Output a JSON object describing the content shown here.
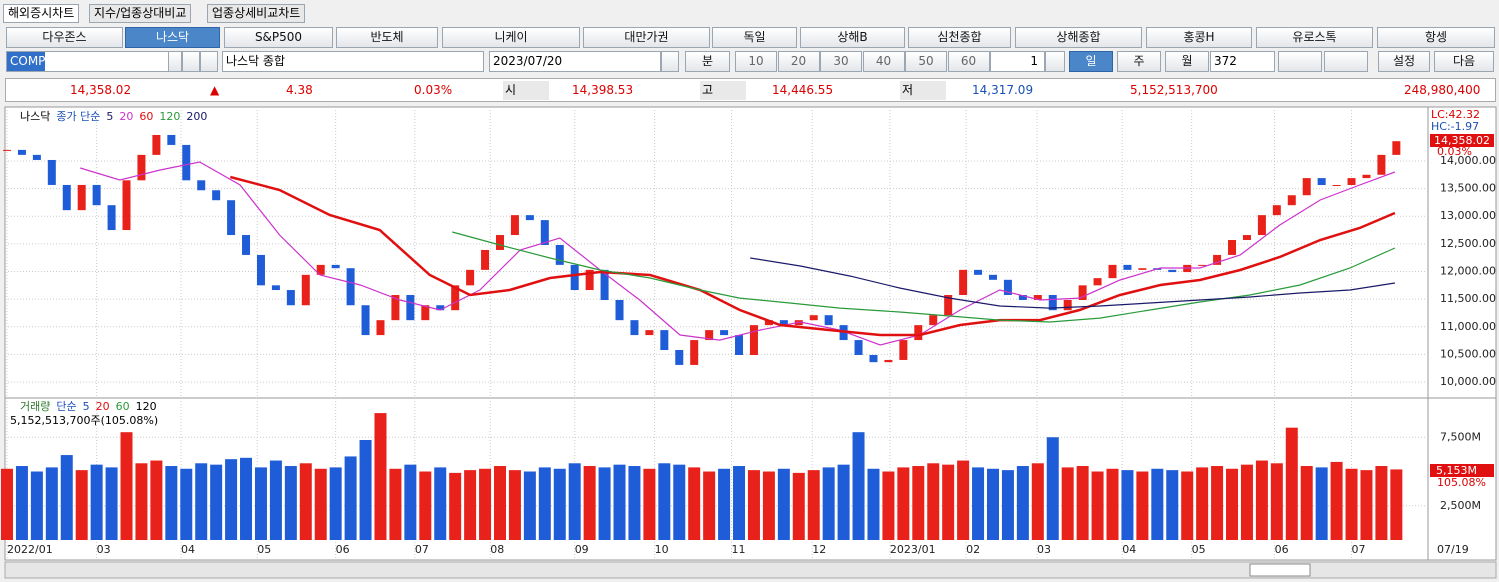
{
  "tabs": [
    "해외증시차트",
    "지수/업종상대비교",
    "업종상세비교차트"
  ],
  "markets": [
    "다우존스",
    "나스닥",
    "S&P500",
    "반도체",
    "니케이",
    "대만가권",
    "독일",
    "상해B",
    "심천종합",
    "상해종합",
    "홍콩H",
    "유로스톡",
    "항셍"
  ],
  "selected_market": 1,
  "symbol": {
    "code": "COMP",
    "name": "나스닥 종합",
    "date": "2023/07/20",
    "minute_label": "분",
    "minute_options": [
      "10",
      "20",
      "30",
      "40",
      "50",
      "60"
    ],
    "interval": "1",
    "periods": [
      "일",
      "주",
      "월"
    ],
    "count": "372",
    "settings": "설정",
    "next": "다음"
  },
  "quote": {
    "last": "14,358.02",
    "arrow": "▲",
    "change": "4.38",
    "change_pct": "0.03%",
    "open_label": "시",
    "open": "14,398.53",
    "high_label": "고",
    "high": "14,446.55",
    "low_label": "저",
    "low": "14,317.09",
    "volume": "5,152,513,700",
    "amount": "248,980,400"
  },
  "chart_data": [
    {
      "type": "candlestick",
      "title": "나스닥",
      "ma_label": "종가 단순",
      "ma5_label": "5",
      "up_color": "#e8221b",
      "down_color": "#1e5cd8",
      "lc_label": "LC:42.32",
      "hc_label": "HC:-1.97",
      "last_label": "14,358.02",
      "change_label": "0.03%",
      "x": [
        0,
        0.2,
        0.4,
        0.6,
        0.8,
        1,
        1.2,
        1.4,
        1.6,
        1.8,
        2,
        2.2,
        2.4,
        2.6,
        2.8,
        3,
        3.2,
        3.4,
        3.6,
        3.8,
        4,
        4.2,
        4.4,
        4.6,
        4.8,
        5,
        5.2,
        5.4,
        5.6,
        5.8,
        6,
        6.2,
        6.4,
        6.6,
        6.8,
        7,
        7.2,
        7.4,
        7.6,
        7.8,
        8,
        8.2,
        8.4,
        8.6,
        8.8,
        9,
        9.2,
        9.4,
        9.6,
        9.8,
        10,
        10.2,
        10.4,
        10.6,
        10.8,
        11,
        11.2,
        11.4,
        11.6,
        11.8,
        12,
        12.2,
        12.4,
        12.6,
        12.8,
        13,
        13.2,
        13.4,
        13.6,
        13.8,
        14,
        14.2,
        14.4,
        14.6,
        14.8,
        15,
        15.2,
        15.4,
        15.6,
        15.8,
        16,
        16.2,
        16.4,
        16.6,
        16.8,
        17,
        17.2,
        17.4,
        17.6,
        17.8,
        18,
        18.2,
        18.4,
        18.6
      ],
      "values": [
        14200,
        14110,
        14018,
        13566,
        13110,
        13566,
        13200,
        12750,
        13650,
        14110,
        14470,
        14290,
        13650,
        13470,
        13290,
        12660,
        12300,
        11750,
        11665,
        11390,
        11940,
        12120,
        12060,
        11390,
        10850,
        11120,
        11575,
        11120,
        11390,
        11300,
        11750,
        12030,
        12390,
        12660,
        13020,
        12930,
        12480,
        12120,
        11665,
        12030,
        11485,
        11120,
        10850,
        10940,
        10580,
        10310,
        10760,
        10940,
        10850,
        10490,
        11030,
        11120,
        11030,
        11120,
        11210,
        11030,
        10760,
        10490,
        10360,
        10400,
        10760,
        11030,
        11210,
        11575,
        12030,
        11940,
        11850,
        11575,
        11485,
        11575,
        11300,
        11485,
        11750,
        11880,
        12120,
        12030,
        12060,
        12030,
        11990,
        12120,
        12120,
        12300,
        12570,
        12660,
        13020,
        13200,
        13380,
        13690,
        13565,
        13565,
        13690,
        13750,
        14110,
        14358.02
      ],
      "series": [
        {
          "name": "20",
          "color": "#cc33cc",
          "x": [
            0.98,
            1.51,
            2.05,
            2.58,
            3.12,
            3.65,
            4.19,
            4.73,
            5.26,
            5.8,
            6.33,
            6.87,
            7.4,
            7.94,
            8.47,
            9.01,
            9.54,
            10.08,
            10.62,
            11.15,
            11.69,
            12.22,
            12.76,
            13.29,
            13.83,
            14.36,
            14.9,
            15.44,
            15.97,
            16.51,
            17.04,
            17.58,
            18.11,
            18.58
          ],
          "values": [
            13873,
            13656,
            13837,
            13982,
            13566,
            12661,
            11937,
            11756,
            11484,
            11303,
            11665,
            12389,
            12606,
            12027,
            11484,
            10851,
            10760,
            10941,
            11086,
            10941,
            10670,
            10851,
            11303,
            11665,
            11484,
            11520,
            11846,
            12063,
            12063,
            12299,
            12842,
            13294,
            13566,
            13801
          ]
        },
        {
          "name": "60",
          "color": "#e01010",
          "x": [
            2.99,
            3.65,
            4.32,
            4.99,
            5.66,
            6.2,
            6.73,
            7.27,
            7.94,
            8.61,
            9.28,
            9.81,
            10.35,
            11.02,
            11.69,
            12.22,
            12.76,
            13.29,
            13.83,
            14.36,
            14.9,
            15.44,
            15.97,
            16.51,
            17.04,
            17.58,
            18.11,
            18.58
          ],
          "values": [
            13710,
            13475,
            13023,
            12751,
            11937,
            11575,
            11665,
            11882,
            11991,
            11937,
            11665,
            11303,
            11032,
            10941,
            10851,
            10851,
            11032,
            11122,
            11122,
            11303,
            11575,
            11756,
            11846,
            12027,
            12262,
            12570,
            12787,
            13059
          ]
        },
        {
          "name": "120",
          "color": "#2a9a3a",
          "x": [
            5.96,
            6.6,
            7.27,
            7.94,
            8.61,
            9.28,
            9.81,
            10.48,
            11.15,
            11.95,
            12.62,
            13.29,
            13.96,
            14.63,
            15.3,
            15.97,
            16.64,
            17.31,
            17.98,
            18.58
          ],
          "values": [
            12715,
            12480,
            12244,
            12027,
            11882,
            11665,
            11520,
            11430,
            11339,
            11267,
            11195,
            11122,
            11086,
            11158,
            11303,
            11448,
            11575,
            11756,
            12063,
            12425
          ]
        },
        {
          "name": "200",
          "color": "#1a1a6a",
          "x": [
            9.95,
            10.62,
            11.29,
            11.95,
            12.62,
            13.29,
            13.96,
            14.63,
            15.3,
            15.97,
            16.64,
            17.31,
            17.98,
            18.58
          ],
          "values": [
            12244,
            12099,
            11918,
            11701,
            11520,
            11376,
            11339,
            11376,
            11430,
            11484,
            11539,
            11611,
            11665,
            11792
          ]
        }
      ],
      "xlim": [
        0,
        18.93
      ],
      "ylim": [
        9730,
        14940
      ],
      "yticks": [
        {
          "value": 10000,
          "label": "10,000.00"
        },
        {
          "value": 10500,
          "label": "10,500.00"
        },
        {
          "value": 11000,
          "label": "11,000.00"
        },
        {
          "value": 11500,
          "label": "11,500.00"
        },
        {
          "value": 12000,
          "label": "12,000.00"
        },
        {
          "value": 12500,
          "label": "12,500.00"
        },
        {
          "value": 13000,
          "label": "13,000.00"
        },
        {
          "value": 13500,
          "label": "13,500.00"
        },
        {
          "value": 14000,
          "label": "14,000.00"
        }
      ],
      "grid": true
    },
    {
      "type": "bar",
      "title": "거래량",
      "ma_label": "단순",
      "ma_periods": [
        "5",
        "20",
        "60",
        "120"
      ],
      "info": "5,152,513,700주(105.08%)",
      "last_label": "5,153M",
      "ratio_label": "105.08%",
      "end_label": "07/19",
      "x": [
        0,
        0.2,
        0.4,
        0.6,
        0.8,
        1,
        1.2,
        1.4,
        1.6,
        1.8,
        2,
        2.2,
        2.4,
        2.6,
        2.8,
        3,
        3.2,
        3.4,
        3.6,
        3.8,
        4,
        4.2,
        4.4,
        4.6,
        4.8,
        5,
        5.2,
        5.4,
        5.6,
        5.8,
        6,
        6.2,
        6.4,
        6.6,
        6.8,
        7,
        7.2,
        7.4,
        7.6,
        7.8,
        8,
        8.2,
        8.4,
        8.6,
        8.8,
        9,
        9.2,
        9.4,
        9.6,
        9.8,
        10,
        10.2,
        10.4,
        10.6,
        10.8,
        11,
        11.2,
        11.4,
        11.6,
        11.8,
        12,
        12.2,
        12.4,
        12.6,
        12.8,
        13,
        13.2,
        13.4,
        13.6,
        13.8,
        14,
        14.2,
        14.4,
        14.6,
        14.8,
        15,
        15.2,
        15.4,
        15.6,
        15.8,
        16,
        16.2,
        16.4,
        16.6,
        16.8,
        17,
        17.2,
        17.4,
        17.6,
        17.8,
        18,
        18.2,
        18.4,
        18.6
      ],
      "values": [
        5200,
        5400,
        5000,
        5300,
        6200,
        5100,
        5500,
        5300,
        7870,
        5600,
        5800,
        5400,
        5200,
        5600,
        5500,
        5900,
        6000,
        5300,
        5800,
        5400,
        5600,
        5200,
        5300,
        6100,
        7300,
        9265,
        5200,
        5500,
        5000,
        5300,
        4900,
        5100,
        5200,
        5400,
        5100,
        5000,
        5300,
        5200,
        5600,
        5400,
        5300,
        5500,
        5400,
        5200,
        5600,
        5500,
        5300,
        5000,
        5200,
        5400,
        5100,
        5000,
        5200,
        4900,
        5100,
        5300,
        5500,
        7870,
        5200,
        5000,
        5300,
        5400,
        5600,
        5500,
        5800,
        5300,
        5200,
        5100,
        5400,
        5600,
        7500,
        5300,
        5400,
        5000,
        5200,
        5100,
        5000,
        5200,
        5100,
        5000,
        5300,
        5400,
        5200,
        5500,
        5800,
        5600,
        8200,
        5400,
        5300,
        5700,
        5200,
        5100,
        5400,
        5152.51
      ],
      "xlim": [
        0,
        18.93
      ],
      "ylim": [
        0,
        10220
      ],
      "yticks": [
        {
          "value": 2500,
          "label": "2,500M"
        },
        {
          "value": 7500,
          "label": "7,500M"
        }
      ],
      "xticks": [
        {
          "value": 0,
          "label": "2022/01"
        },
        {
          "value": 1.2,
          "label": "03"
        },
        {
          "value": 2.33,
          "label": "04"
        },
        {
          "value": 3.35,
          "label": "05"
        },
        {
          "value": 4.4,
          "label": "06"
        },
        {
          "value": 5.46,
          "label": "07"
        },
        {
          "value": 6.47,
          "label": "08"
        },
        {
          "value": 7.6,
          "label": "09"
        },
        {
          "value": 8.67,
          "label": "10"
        },
        {
          "value": 9.7,
          "label": "11"
        },
        {
          "value": 10.78,
          "label": "12"
        },
        {
          "value": 11.82,
          "label": "2023/01"
        },
        {
          "value": 12.84,
          "label": "02"
        },
        {
          "value": 13.79,
          "label": "03"
        },
        {
          "value": 14.93,
          "label": "04"
        },
        {
          "value": 15.86,
          "label": "05"
        },
        {
          "value": 16.97,
          "label": "06"
        },
        {
          "value": 18.0,
          "label": "07"
        }
      ],
      "grid": true
    }
  ]
}
